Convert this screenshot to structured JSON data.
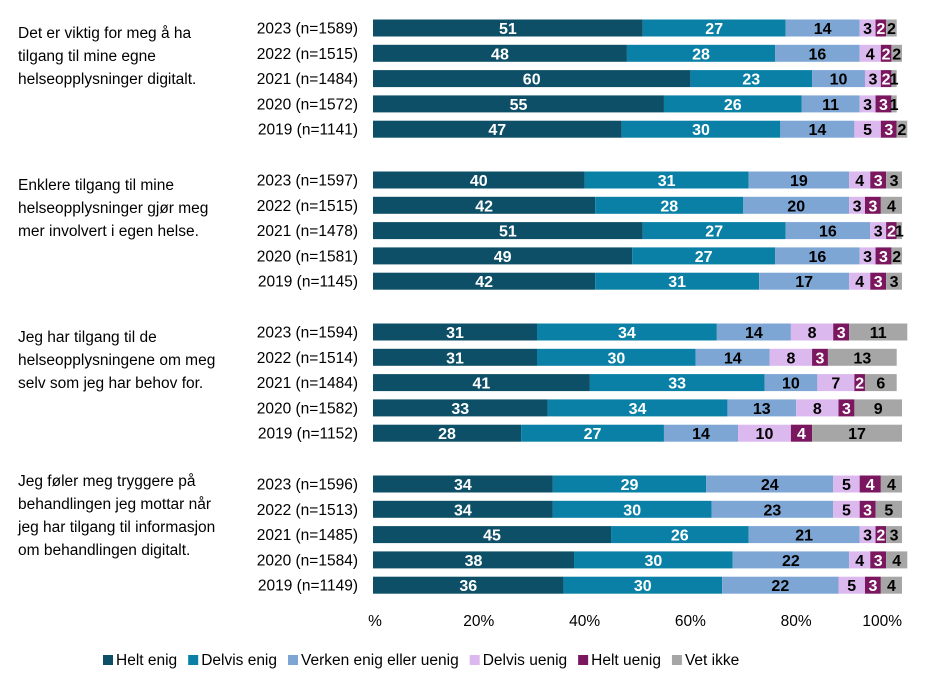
{
  "chart_data": {
    "type": "bar",
    "orientation": "horizontal-stacked-100",
    "xlim": [
      0,
      100
    ],
    "x_ticks": [
      "%",
      "20%",
      "40%",
      "60%",
      "80%",
      "100%"
    ],
    "legend_position": "bottom",
    "series_names": [
      "Helt enig",
      "Delvis enig",
      "Verken enig eller uenig",
      "Delvis uenig",
      "Helt uenig",
      "Vet ikke"
    ],
    "series_colors": [
      "#0e4f68",
      "#0a80a6",
      "#7ea6d5",
      "#dbb9ee",
      "#7a175f",
      "#a6a6a6"
    ],
    "label_colors": [
      "#ffffff",
      "#ffffff",
      "#000000",
      "#000000",
      "#ffffff",
      "#000000"
    ],
    "groups": [
      {
        "question": "Det er viktig for meg å ha tilgang til mine egne helseopplysninger digitalt.",
        "rows": [
          {
            "label": "2023 (n=1589)",
            "values": [
              51,
              27,
              14,
              3,
              2,
              2
            ]
          },
          {
            "label": "2022 (n=1515)",
            "values": [
              48,
              28,
              16,
              4,
              2,
              2
            ]
          },
          {
            "label": "2021 (n=1484)",
            "values": [
              60,
              23,
              10,
              3,
              2,
              1
            ]
          },
          {
            "label": "2020 (n=1572)",
            "values": [
              55,
              26,
              11,
              3,
              3,
              1
            ]
          },
          {
            "label": "2019 (n=1141)",
            "values": [
              47,
              30,
              14,
              5,
              3,
              2
            ]
          }
        ]
      },
      {
        "question": "Enklere tilgang til mine helseopplysninger gjør meg mer involvert i egen helse.",
        "rows": [
          {
            "label": "2023 (n=1597)",
            "values": [
              40,
              31,
              19,
              4,
              3,
              3
            ]
          },
          {
            "label": "2022 (n=1515)",
            "values": [
              42,
              28,
              20,
              3,
              3,
              4
            ]
          },
          {
            "label": "2021 (n=1478)",
            "values": [
              51,
              27,
              16,
              3,
              2,
              1
            ]
          },
          {
            "label": "2020 (n=1581)",
            "values": [
              49,
              27,
              16,
              3,
              3,
              2
            ]
          },
          {
            "label": "2019 (n=1145)",
            "values": [
              42,
              31,
              17,
              4,
              3,
              3
            ]
          }
        ]
      },
      {
        "question": "Jeg har tilgang til de helseopplysningene om meg selv som jeg har behov for.",
        "rows": [
          {
            "label": "2023 (n=1594)",
            "values": [
              31,
              34,
              14,
              8,
              3,
              11
            ]
          },
          {
            "label": "2022 (n=1514)",
            "values": [
              31,
              30,
              14,
              8,
              3,
              13
            ]
          },
          {
            "label": "2021 (n=1484)",
            "values": [
              41,
              33,
              10,
              7,
              2,
              6
            ]
          },
          {
            "label": "2020 (n=1582)",
            "values": [
              33,
              34,
              13,
              8,
              3,
              9
            ]
          },
          {
            "label": "2019 (n=1152)",
            "values": [
              28,
              27,
              14,
              10,
              4,
              17
            ]
          }
        ]
      },
      {
        "question": "Jeg føler meg tryggere på behandlingen jeg mottar når jeg har tilgang til informasjon om behandlingen digitalt.",
        "rows": [
          {
            "label": "2023 (n=1596)",
            "values": [
              34,
              29,
              24,
              5,
              4,
              4
            ]
          },
          {
            "label": "2022 (n=1513)",
            "values": [
              34,
              30,
              23,
              5,
              3,
              5
            ]
          },
          {
            "label": "2021 (n=1485)",
            "values": [
              45,
              26,
              21,
              3,
              2,
              3
            ]
          },
          {
            "label": "2020 (n=1584)",
            "values": [
              38,
              30,
              22,
              4,
              3,
              4
            ]
          },
          {
            "label": "2019 (n=1149)",
            "values": [
              36,
              30,
              22,
              5,
              3,
              4
            ]
          }
        ]
      }
    ]
  }
}
